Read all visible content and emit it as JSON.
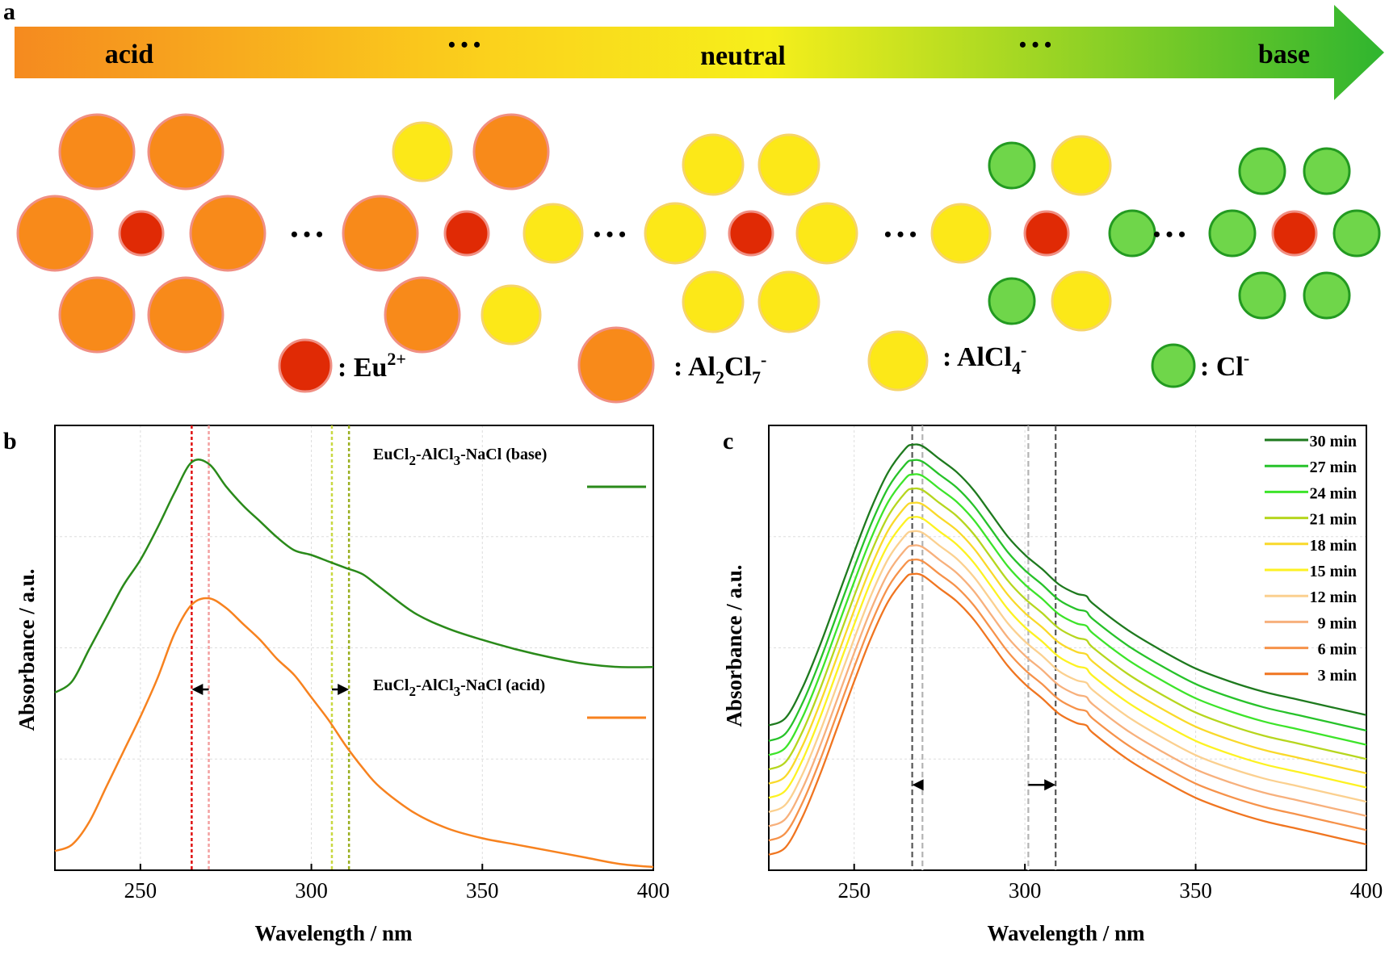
{
  "panel_a": {
    "label": "a",
    "gradient_labels": {
      "acid": "acid",
      "neutral": "neutral",
      "base": "base",
      "ellipsis": "• • •"
    },
    "gradient_colors": [
      "#f58a1f",
      "#fbd21c",
      "#f6ef1b",
      "#2fb52f"
    ],
    "connector": "• • •",
    "species": {
      "eu": {
        "label": "Eu",
        "sup": "2+",
        "fill": "#e02a05",
        "stroke": "#f08f83"
      },
      "al2cl7": {
        "label_main": "Al",
        "sub1": "2",
        "mid": "Cl",
        "sub2": "7",
        "sup": "-",
        "fill": "#f88a1a",
        "stroke": "#f08f83"
      },
      "alcl4": {
        "label_main": "AlCl",
        "sub": "4",
        "sup": "-",
        "fill": "#fce818",
        "stroke": "#f6d46a"
      },
      "cl": {
        "label": "Cl",
        "sup": "-",
        "fill": "#6fd64a",
        "stroke": "#239a21"
      }
    },
    "legend_colon": ":"
  },
  "panel_b": {
    "label": "b",
    "ylabel": "Absorbance / a.u.",
    "xlabel": "Wavelength / nm",
    "legend_base": {
      "parts": [
        "EuCl",
        "2",
        "-AlCl",
        "3",
        "-NaCl (base)"
      ],
      "color": "#2a8a1a"
    },
    "legend_acid": {
      "parts": [
        "EuCl",
        "2",
        "-AlCl",
        "3",
        "-NaCl (acid)"
      ],
      "color": "#f7821f"
    }
  },
  "panel_c": {
    "label": "c",
    "ylabel": "Absorbance / a.u.",
    "xlabel": "Wavelength / nm"
  },
  "chart_data": [
    {
      "type": "line",
      "panel": "b",
      "xlabel": "Wavelength / nm",
      "ylabel": "Absorbance / a.u.",
      "xlim": [
        225,
        400
      ],
      "xticks": [
        250,
        300,
        350,
        400
      ],
      "grid": true,
      "series": [
        {
          "name": "EuCl2-AlCl3-NaCl (base)",
          "color": "#2a8a1a",
          "x": [
            225,
            230,
            235,
            240,
            245,
            250,
            255,
            260,
            265,
            270,
            275,
            280,
            285,
            290,
            295,
            300,
            305,
            310,
            315,
            320,
            330,
            340,
            350,
            360,
            370,
            380,
            390,
            400
          ],
          "y": [
            0.495,
            0.53,
            0.63,
            0.73,
            0.83,
            0.91,
            1.01,
            1.12,
            1.215,
            1.21,
            1.14,
            1.08,
            1.03,
            0.98,
            0.94,
            0.925,
            0.905,
            0.885,
            0.865,
            0.825,
            0.745,
            0.695,
            0.66,
            0.63,
            0.605,
            0.585,
            0.575,
            0.575
          ]
        },
        {
          "name": "EuCl2-AlCl3-NaCl (acid)",
          "color": "#f7821f",
          "x": [
            225,
            230,
            235,
            240,
            245,
            250,
            255,
            260,
            265,
            270,
            275,
            280,
            285,
            290,
            295,
            300,
            305,
            310,
            315,
            320,
            330,
            340,
            350,
            360,
            370,
            380,
            390,
            400
          ],
          "y": [
            0.0,
            0.02,
            0.09,
            0.2,
            0.31,
            0.42,
            0.54,
            0.68,
            0.77,
            0.79,
            0.76,
            0.71,
            0.66,
            0.6,
            0.55,
            0.48,
            0.41,
            0.33,
            0.26,
            0.2,
            0.12,
            0.07,
            0.04,
            0.02,
            0.0,
            -0.02,
            -0.04,
            -0.05
          ]
        }
      ],
      "vlines": [
        {
          "x": 265,
          "color": "#e01010"
        },
        {
          "x": 270,
          "color": "#f3a0a0"
        },
        {
          "x": 306,
          "color": "#c9d840"
        },
        {
          "x": 311,
          "color": "#9aaf20"
        }
      ],
      "arrows": [
        {
          "from": 270,
          "to": 265,
          "y": 0.505
        },
        {
          "from": 306,
          "to": 311,
          "y": 0.505
        }
      ]
    },
    {
      "type": "line",
      "panel": "c",
      "xlabel": "Wavelength / nm",
      "ylabel": "Absorbance / a.u.",
      "xlim": [
        225,
        400
      ],
      "xticks": [
        250,
        300,
        350,
        400
      ],
      "grid": true,
      "legend": "top-right",
      "base_curve": {
        "x": [
          225,
          230,
          235,
          240,
          245,
          250,
          255,
          260,
          265,
          267,
          270,
          275,
          280,
          285,
          290,
          295,
          300,
          305,
          310,
          315,
          318,
          320,
          330,
          340,
          350,
          360,
          370,
          380,
          390,
          400
        ],
        "y": [
          0.06,
          0.09,
          0.21,
          0.37,
          0.55,
          0.73,
          0.9,
          1.04,
          1.13,
          1.145,
          1.14,
          1.09,
          1.04,
          0.97,
          0.88,
          0.79,
          0.72,
          0.665,
          0.605,
          0.57,
          0.56,
          0.53,
          0.43,
          0.35,
          0.28,
          0.23,
          0.19,
          0.16,
          0.13,
          0.1
        ]
      },
      "series": [
        {
          "name": "3 min",
          "color": "#f07520",
          "offset": 0.0
        },
        {
          "name": "6 min",
          "color": "#f6924a",
          "offset": 0.055
        },
        {
          "name": "9 min",
          "color": "#f7b07c",
          "offset": 0.11
        },
        {
          "name": "12 min",
          "color": "#fbd08f",
          "offset": 0.165
        },
        {
          "name": "15 min",
          "color": "#fdf222",
          "offset": 0.22
        },
        {
          "name": "18 min",
          "color": "#f9d92a",
          "offset": 0.275
        },
        {
          "name": "21 min",
          "color": "#b6d61e",
          "offset": 0.33
        },
        {
          "name": "24 min",
          "color": "#3de42a",
          "offset": 0.385
        },
        {
          "name": "27 min",
          "color": "#27c22a",
          "offset": 0.44
        },
        {
          "name": "30 min",
          "color": "#1e7a1e",
          "offset": 0.5
        }
      ],
      "vlines": [
        {
          "x": 267,
          "color": "#555555"
        },
        {
          "x": 270,
          "color": "#b3b3b3"
        },
        {
          "x": 301,
          "color": "#b3b3b3"
        },
        {
          "x": 309,
          "color": "#555555"
        }
      ],
      "arrows": [
        {
          "from": 270,
          "to": 267,
          "y": 0.33
        },
        {
          "from": 301,
          "to": 309,
          "y": 0.33
        }
      ]
    }
  ]
}
